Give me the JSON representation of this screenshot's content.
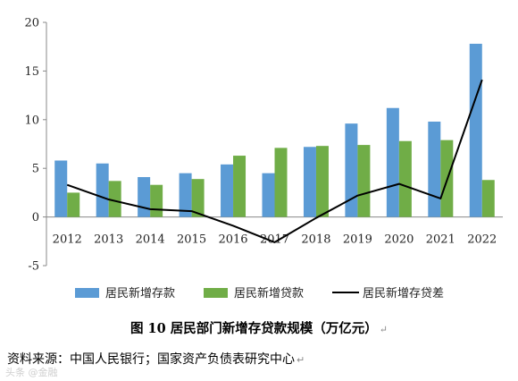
{
  "chart_data": {
    "type": "bar",
    "categories": [
      "2012",
      "2013",
      "2014",
      "2015",
      "2016",
      "2017",
      "2018",
      "2019",
      "2020",
      "2021",
      "2022"
    ],
    "series": [
      {
        "name": "居民新增存款",
        "kind": "bar",
        "color": "#5b9bd5",
        "values": [
          5.8,
          5.5,
          4.1,
          4.5,
          5.4,
          4.5,
          7.2,
          9.6,
          11.2,
          9.8,
          17.8
        ]
      },
      {
        "name": "居民新增贷款",
        "kind": "bar",
        "color": "#70ad47",
        "values": [
          2.5,
          3.7,
          3.3,
          3.9,
          6.3,
          7.1,
          7.3,
          7.4,
          7.8,
          7.9,
          3.8
        ]
      },
      {
        "name": "居民新增存贷差",
        "kind": "line",
        "color": "#000000",
        "values": [
          3.3,
          1.8,
          0.8,
          0.6,
          -0.9,
          -2.6,
          -0.1,
          2.2,
          3.4,
          1.9,
          14.1
        ]
      }
    ],
    "ylim": [
      -5,
      20
    ],
    "yticks": [
      -5,
      0,
      5,
      10,
      15,
      20
    ],
    "grid": false,
    "legend_position": "bottom"
  },
  "caption": {
    "title": "图 10  居民部门新增存贷款规模（万亿元）",
    "mark": "↵"
  },
  "source": {
    "text": "资料来源：中国人民银行；国家资产负债表研究中心",
    "mark": "↵"
  },
  "watermark": "头条 @金融"
}
